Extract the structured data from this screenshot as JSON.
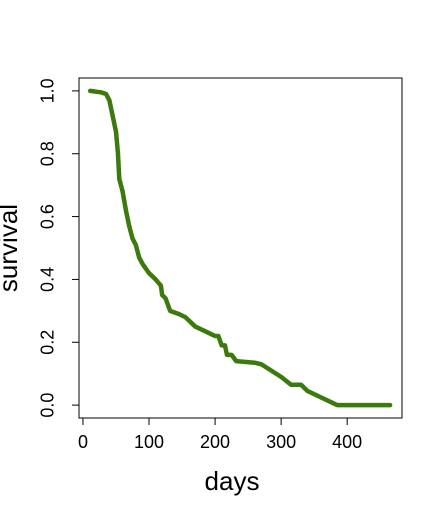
{
  "chart_data": {
    "type": "line",
    "xlabel": "days",
    "ylabel": "survival",
    "x": [
      11,
      28,
      35,
      40,
      45,
      50,
      53,
      55,
      60,
      65,
      70,
      75,
      80,
      85,
      90,
      100,
      110,
      118,
      120,
      125,
      132,
      145,
      155,
      160,
      170,
      180,
      190,
      200,
      205,
      210,
      215,
      218,
      225,
      232,
      260,
      270,
      300,
      315,
      330,
      340,
      380,
      385,
      465
    ],
    "values": [
      1.0,
      0.995,
      0.99,
      0.97,
      0.92,
      0.87,
      0.8,
      0.72,
      0.68,
      0.62,
      0.57,
      0.53,
      0.51,
      0.47,
      0.45,
      0.42,
      0.4,
      0.38,
      0.35,
      0.34,
      0.3,
      0.29,
      0.28,
      0.27,
      0.25,
      0.24,
      0.23,
      0.22,
      0.22,
      0.19,
      0.19,
      0.16,
      0.16,
      0.14,
      0.135,
      0.13,
      0.09,
      0.065,
      0.065,
      0.045,
      0.005,
      0,
      0
    ],
    "color": "#3c7a0e",
    "xlim": [
      -6,
      483
    ],
    "ylim": [
      -0.041,
      1.041
    ],
    "xticks": [
      0,
      100,
      200,
      300,
      400
    ],
    "yticks": [
      {
        "value": 0,
        "label": "0.0"
      },
      0.2,
      0.4,
      0.6,
      0.8,
      {
        "value": 1,
        "label": "1.0"
      }
    ]
  }
}
